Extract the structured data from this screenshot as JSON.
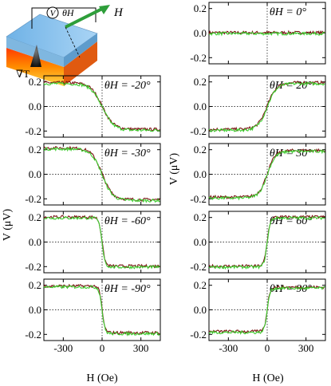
{
  "chart_data": {
    "type": "line",
    "xlabel": "H (Oe)",
    "ylabel": "V (μV)",
    "xlim": [
      -450,
      450
    ],
    "ylim": [
      -0.25,
      0.25
    ],
    "x_ticks": [
      -300,
      0,
      300
    ],
    "x_tick_labels": [
      "-300",
      "0",
      "300"
    ],
    "y_ticks": [
      0.2,
      0.0,
      -0.2
    ],
    "y_tick_labels": [
      "0.2",
      "0.0",
      "-0.2"
    ],
    "series_colors": [
      "#7a1212",
      "#3ccf2e"
    ],
    "inset_labels": {
      "voltmeter": "V",
      "theta": "θH",
      "field": "H",
      "gradient": "∇T"
    },
    "panels": [
      {
        "label": "θH = 0°",
        "angle": "0",
        "amplitude": 0.0
      },
      {
        "label": "θH = -20°",
        "angle": "-20",
        "amplitude": -0.19
      },
      {
        "label": "θH = 20°",
        "angle": "20",
        "amplitude": 0.19
      },
      {
        "label": "θH = -30°",
        "angle": "-30",
        "amplitude": -0.21
      },
      {
        "label": "θH = 30°",
        "angle": "30",
        "amplitude": 0.19
      },
      {
        "label": "θH = -60°",
        "angle": "-60",
        "amplitude": -0.2
      },
      {
        "label": "θH = 60°",
        "angle": "60",
        "amplitude": 0.2
      },
      {
        "label": "θH = -90°",
        "angle": "-90",
        "amplitude": -0.19
      },
      {
        "label": "θH = 90°",
        "angle": "90",
        "amplitude": 0.18
      }
    ]
  }
}
